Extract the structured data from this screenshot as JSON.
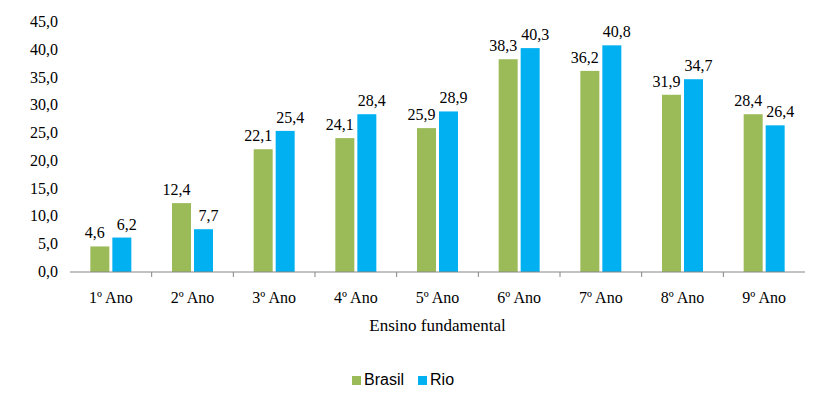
{
  "chart_data": {
    "type": "bar",
    "x_label": "Ensino fundamental",
    "categories": [
      "1º Ano",
      "2º Ano",
      "3º Ano",
      "4º Ano",
      "5º Ano",
      "6º Ano",
      "7º Ano",
      "8º Ano",
      "9º Ano"
    ],
    "series": [
      {
        "name": "Brasil",
        "color": "#9bbb59",
        "values": [
          4.6,
          12.4,
          22.1,
          24.1,
          25.9,
          38.3,
          36.2,
          31.9,
          28.4
        ],
        "value_labels": [
          "4,6",
          "12,4",
          "22,1",
          "24,1",
          "25,9",
          "38,3",
          "36,2",
          "31,9",
          "28,4"
        ]
      },
      {
        "name": "Rio",
        "color": "#00b0f0",
        "values": [
          6.2,
          7.7,
          25.4,
          28.4,
          28.9,
          40.3,
          40.8,
          34.7,
          26.4
        ],
        "value_labels": [
          "6,2",
          "7,7",
          "25,4",
          "28,4",
          "28,9",
          "40,3",
          "40,8",
          "34,7",
          "26,4"
        ]
      }
    ],
    "ylim": [
      0,
      45
    ],
    "yticks": [
      {
        "value": 0,
        "label": "0,0"
      },
      {
        "value": 5,
        "label": "5,0"
      },
      {
        "value": 10,
        "label": "10,0"
      },
      {
        "value": 15,
        "label": "15,0"
      },
      {
        "value": 20,
        "label": "20,0"
      },
      {
        "value": 25,
        "label": "25,0"
      },
      {
        "value": 30,
        "label": "30,0"
      },
      {
        "value": 35,
        "label": "35,0"
      },
      {
        "value": 40,
        "label": "40,0"
      },
      {
        "value": 45,
        "label": "45,0"
      }
    ],
    "grid": false,
    "legend": "bottom",
    "data_labels": true
  }
}
